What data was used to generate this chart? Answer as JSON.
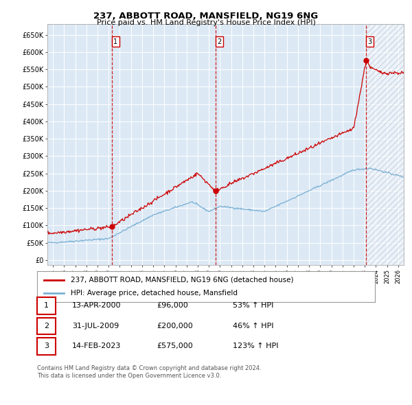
{
  "title": "237, ABBOTT ROAD, MANSFIELD, NG19 6NG",
  "subtitle": "Price paid vs. HM Land Registry's House Price Index (HPI)",
  "ylabel_ticks": [
    "£0",
    "£50K",
    "£100K",
    "£150K",
    "£200K",
    "£250K",
    "£300K",
    "£350K",
    "£400K",
    "£450K",
    "£500K",
    "£550K",
    "£600K",
    "£650K"
  ],
  "ytick_values": [
    0,
    50000,
    100000,
    150000,
    200000,
    250000,
    300000,
    350000,
    400000,
    450000,
    500000,
    550000,
    600000,
    650000
  ],
  "xlim_start": 1994.5,
  "xlim_end": 2026.5,
  "ylim_min": -15000,
  "ylim_max": 680000,
  "background_color": "#ffffff",
  "plot_bg_color": "#dce9f5",
  "grid_color": "#ffffff",
  "hpi_line_color": "#7ab0d4",
  "price_line_color": "#cc0000",
  "sale1_date": 2000.28,
  "sale1_price": 96000,
  "sale2_date": 2009.58,
  "sale2_price": 200000,
  "sale3_date": 2023.12,
  "sale3_price": 575000,
  "vline_color": "#cc0000",
  "marker_color": "#cc0000",
  "legend_label_price": "237, ABBOTT ROAD, MANSFIELD, NG19 6NG (detached house)",
  "legend_label_hpi": "HPI: Average price, detached house, Mansfield",
  "table_rows": [
    {
      "num": "1",
      "date": "13-APR-2000",
      "price": "£96,000",
      "change": "53% ↑ HPI"
    },
    {
      "num": "2",
      "date": "31-JUL-2009",
      "price": "£200,000",
      "change": "46% ↑ HPI"
    },
    {
      "num": "3",
      "date": "14-FEB-2023",
      "price": "£575,000",
      "change": "123% ↑ HPI"
    }
  ],
  "footnote": "Contains HM Land Registry data © Crown copyright and database right 2024.\nThis data is licensed under the Open Government Licence v3.0.",
  "hatch_region_start": 2023.12,
  "hatch_region_end": 2026.5
}
